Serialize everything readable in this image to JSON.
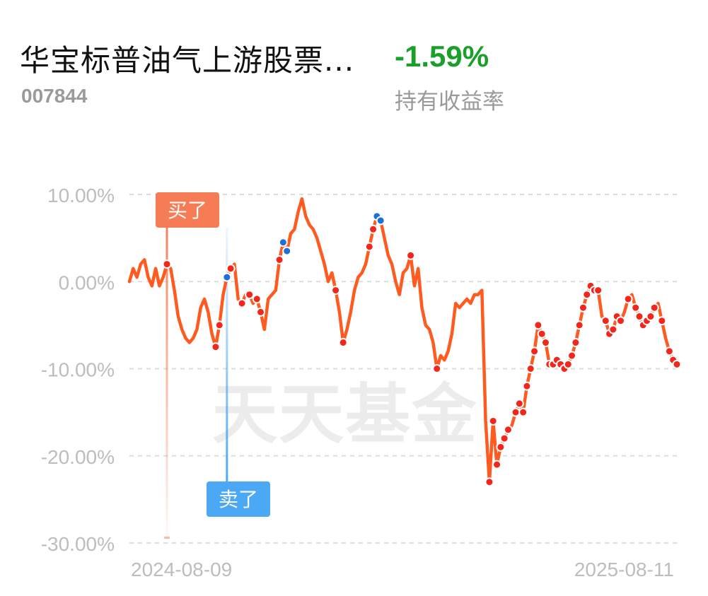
{
  "fund": {
    "name": "华宝标普油气上游股票...",
    "code": "007844"
  },
  "holding_return": {
    "value": "-1.59%",
    "label": "持有收益率"
  },
  "watermark": "天天基金",
  "markers": {
    "buy_label": "买了",
    "sell_label": "卖了"
  },
  "colors": {
    "line": "#ff5a1f",
    "dot_red": "#f2261a",
    "dot_blue": "#1f6fd9",
    "buy": "#f57c55",
    "sell": "#4aa8f5",
    "positive": "#1aa02a",
    "axis_text": "#bdbdbd"
  },
  "chart_data": {
    "type": "line",
    "y_axis": {
      "ticks": [
        "10.00%",
        "0.00%",
        "-10.00%",
        "-20.00%",
        "-30.00%"
      ],
      "range": [
        -30,
        10
      ],
      "unit": "%",
      "grid": true
    },
    "x_axis": {
      "start_label": "2024-08-09",
      "end_label": "2025-08-11"
    },
    "series": [
      {
        "values": [
          0,
          1.5,
          0.5,
          2,
          2.5,
          0.5,
          -0.5,
          1.5,
          -0.5,
          0.5,
          2,
          1.5,
          -1,
          -4,
          -5.5,
          -6.5,
          -7,
          -6.5,
          -5.5,
          -3,
          -2,
          -3.5,
          -6,
          -7.5,
          -5,
          -1.5,
          0.5,
          1.5,
          2,
          -2,
          -2.5,
          -1.5,
          -1.5,
          -2.5,
          -2,
          -3.5,
          -5.5,
          -2,
          -1.5,
          -1,
          2.5,
          4.5,
          3.5,
          5.5,
          6,
          8,
          9.5,
          7.5,
          6.5,
          6,
          5,
          3.5,
          2,
          0,
          1,
          -1,
          -3.5,
          -7,
          -5.5,
          -3.5,
          -1,
          0.5,
          1,
          2,
          4,
          6,
          7.5,
          7,
          5,
          3,
          2,
          0,
          -1.5,
          1,
          1.5,
          3,
          -0.5,
          1.5,
          -3,
          -5,
          -5.5,
          -7,
          -10,
          -8.5,
          -9,
          -8,
          -6,
          -2.5,
          -3,
          -2.5,
          -2,
          -2.5,
          -1.5,
          -1.5,
          -1,
          -16,
          -23,
          -16,
          -21,
          -19,
          -18,
          -17,
          -16.5,
          -15,
          -14,
          -15,
          -12,
          -10,
          -8,
          -5,
          -6,
          -7,
          -9.5,
          -9.5,
          -9,
          -9.5,
          -10,
          -9.5,
          -8.5,
          -7,
          -5,
          -3,
          -1.5,
          -0.5,
          -1,
          -1,
          -4,
          -4.5,
          -6,
          -5.5,
          -4,
          -4.5,
          -3.5,
          -2,
          -1.5,
          -3,
          -4,
          -5,
          -4.5,
          -4,
          -3,
          -2.5,
          -4.5,
          -6.5,
          -8,
          -9,
          -9.5
        ]
      }
    ],
    "buy_point_value": 1,
    "sell_point_value": 0
  }
}
